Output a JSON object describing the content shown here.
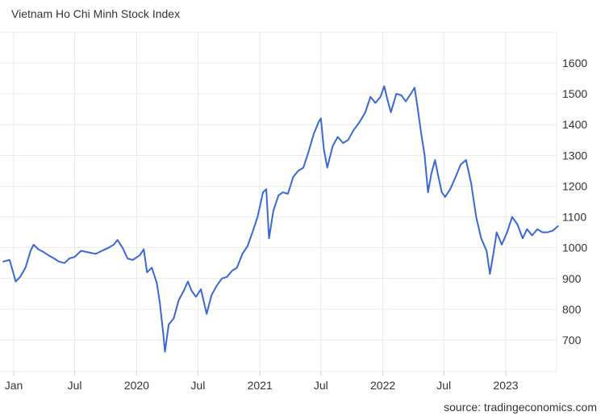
{
  "title": "Vietnam Ho Chi Minh Stock Index",
  "source": "source: tradingeconomics.com",
  "colors": {
    "line": "#3a67d6",
    "grid": "#e9e9e9",
    "text": "#333333"
  },
  "chart_data": {
    "type": "line",
    "title": "Vietnam Ho Chi Minh Stock Index",
    "xlabel": "",
    "ylabel": "",
    "grid": true,
    "legend": "none",
    "y_axis_position": "right",
    "ylim": [
      610,
      1700
    ],
    "xlim": [
      "2019-01-01",
      "2023-06-15"
    ],
    "y_ticks": [
      700,
      800,
      900,
      1000,
      1100,
      1200,
      1300,
      1400,
      1500,
      1600
    ],
    "x_ticks": [
      {
        "date": "2019-01-01",
        "label": "Jan"
      },
      {
        "date": "2019-07-01",
        "label": "Jul"
      },
      {
        "date": "2020-01-01",
        "label": "2020"
      },
      {
        "date": "2020-07-01",
        "label": "Jul"
      },
      {
        "date": "2021-01-01",
        "label": "2021"
      },
      {
        "date": "2021-07-01",
        "label": "Jul"
      },
      {
        "date": "2022-01-01",
        "label": "2022"
      },
      {
        "date": "2022-07-01",
        "label": "Jul"
      },
      {
        "date": "2023-01-01",
        "label": "2023"
      }
    ],
    "series": [
      {
        "values": [
          [
            "2018-12-01",
            955
          ],
          [
            "2018-12-20",
            960
          ],
          [
            "2019-01-07",
            890
          ],
          [
            "2019-01-20",
            905
          ],
          [
            "2019-02-05",
            935
          ],
          [
            "2019-02-20",
            990
          ],
          [
            "2019-03-01",
            1010
          ],
          [
            "2019-03-15",
            995
          ],
          [
            "2019-04-01",
            985
          ],
          [
            "2019-04-15",
            975
          ],
          [
            "2019-05-01",
            965
          ],
          [
            "2019-05-15",
            955
          ],
          [
            "2019-06-01",
            950
          ],
          [
            "2019-06-15",
            965
          ],
          [
            "2019-07-01",
            970
          ],
          [
            "2019-07-20",
            990
          ],
          [
            "2019-08-10",
            985
          ],
          [
            "2019-09-01",
            980
          ],
          [
            "2019-09-20",
            990
          ],
          [
            "2019-10-10",
            1000
          ],
          [
            "2019-10-25",
            1010
          ],
          [
            "2019-11-05",
            1025
          ],
          [
            "2019-11-20",
            1000
          ],
          [
            "2019-12-05",
            965
          ],
          [
            "2019-12-20",
            960
          ],
          [
            "2020-01-10",
            975
          ],
          [
            "2020-01-22",
            995
          ],
          [
            "2020-02-01",
            920
          ],
          [
            "2020-02-15",
            935
          ],
          [
            "2020-03-01",
            885
          ],
          [
            "2020-03-10",
            820
          ],
          [
            "2020-03-20",
            720
          ],
          [
            "2020-03-25",
            662
          ],
          [
            "2020-04-05",
            750
          ],
          [
            "2020-04-20",
            770
          ],
          [
            "2020-05-05",
            830
          ],
          [
            "2020-05-20",
            860
          ],
          [
            "2020-06-01",
            890
          ],
          [
            "2020-06-12",
            860
          ],
          [
            "2020-06-25",
            840
          ],
          [
            "2020-07-10",
            865
          ],
          [
            "2020-07-27",
            785
          ],
          [
            "2020-08-10",
            845
          ],
          [
            "2020-08-25",
            875
          ],
          [
            "2020-09-10",
            900
          ],
          [
            "2020-09-25",
            905
          ],
          [
            "2020-10-10",
            925
          ],
          [
            "2020-10-25",
            935
          ],
          [
            "2020-11-10",
            980
          ],
          [
            "2020-11-25",
            1005
          ],
          [
            "2020-12-10",
            1050
          ],
          [
            "2020-12-25",
            1100
          ],
          [
            "2021-01-10",
            1180
          ],
          [
            "2021-01-20",
            1190
          ],
          [
            "2021-01-28",
            1030
          ],
          [
            "2021-02-10",
            1120
          ],
          [
            "2021-02-25",
            1170
          ],
          [
            "2021-03-10",
            1180
          ],
          [
            "2021-03-25",
            1175
          ],
          [
            "2021-04-10",
            1230
          ],
          [
            "2021-04-25",
            1250
          ],
          [
            "2021-05-10",
            1260
          ],
          [
            "2021-05-25",
            1310
          ],
          [
            "2021-06-10",
            1370
          ],
          [
            "2021-06-25",
            1410
          ],
          [
            "2021-07-01",
            1420
          ],
          [
            "2021-07-10",
            1320
          ],
          [
            "2021-07-20",
            1260
          ],
          [
            "2021-08-05",
            1330
          ],
          [
            "2021-08-20",
            1360
          ],
          [
            "2021-09-05",
            1340
          ],
          [
            "2021-09-20",
            1350
          ],
          [
            "2021-10-05",
            1380
          ],
          [
            "2021-10-25",
            1410
          ],
          [
            "2021-11-10",
            1440
          ],
          [
            "2021-11-25",
            1490
          ],
          [
            "2021-12-10",
            1470
          ],
          [
            "2021-12-25",
            1490
          ],
          [
            "2022-01-05",
            1525
          ],
          [
            "2022-01-15",
            1480
          ],
          [
            "2022-01-25",
            1440
          ],
          [
            "2022-02-10",
            1500
          ],
          [
            "2022-02-25",
            1495
          ],
          [
            "2022-03-10",
            1475
          ],
          [
            "2022-03-25",
            1500
          ],
          [
            "2022-04-05",
            1520
          ],
          [
            "2022-04-15",
            1450
          ],
          [
            "2022-04-25",
            1370
          ],
          [
            "2022-05-05",
            1300
          ],
          [
            "2022-05-15",
            1180
          ],
          [
            "2022-05-25",
            1240
          ],
          [
            "2022-06-05",
            1285
          ],
          [
            "2022-06-15",
            1230
          ],
          [
            "2022-06-25",
            1180
          ],
          [
            "2022-07-05",
            1165
          ],
          [
            "2022-07-20",
            1190
          ],
          [
            "2022-08-05",
            1230
          ],
          [
            "2022-08-20",
            1270
          ],
          [
            "2022-09-05",
            1285
          ],
          [
            "2022-09-20",
            1210
          ],
          [
            "2022-10-05",
            1100
          ],
          [
            "2022-10-20",
            1030
          ],
          [
            "2022-11-05",
            990
          ],
          [
            "2022-11-15",
            915
          ],
          [
            "2022-11-25",
            980
          ],
          [
            "2022-12-05",
            1050
          ],
          [
            "2022-12-20",
            1010
          ],
          [
            "2023-01-05",
            1050
          ],
          [
            "2023-01-20",
            1100
          ],
          [
            "2023-02-05",
            1075
          ],
          [
            "2023-02-20",
            1030
          ],
          [
            "2023-03-05",
            1060
          ],
          [
            "2023-03-20",
            1040
          ],
          [
            "2023-04-05",
            1060
          ],
          [
            "2023-04-20",
            1050
          ],
          [
            "2023-05-05",
            1050
          ],
          [
            "2023-05-20",
            1055
          ],
          [
            "2023-06-05",
            1070
          ]
        ]
      }
    ]
  }
}
